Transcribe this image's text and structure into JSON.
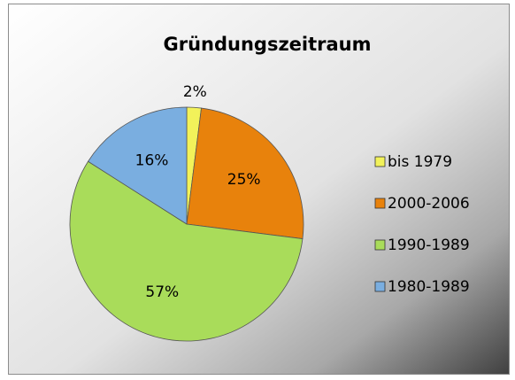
{
  "chart_data": {
    "type": "pie",
    "title": "Gründungszeitraum",
    "categories": [
      "bis 1979",
      "2000-2006",
      "1990-1989",
      "1980-1989"
    ],
    "values": [
      2,
      25,
      57,
      16
    ],
    "value_labels": [
      "2%",
      "25%",
      "57%",
      "16%"
    ],
    "colors": [
      "#f2f25a",
      "#e8820c",
      "#a9dc5a",
      "#7aaee0"
    ],
    "legend": "right"
  }
}
